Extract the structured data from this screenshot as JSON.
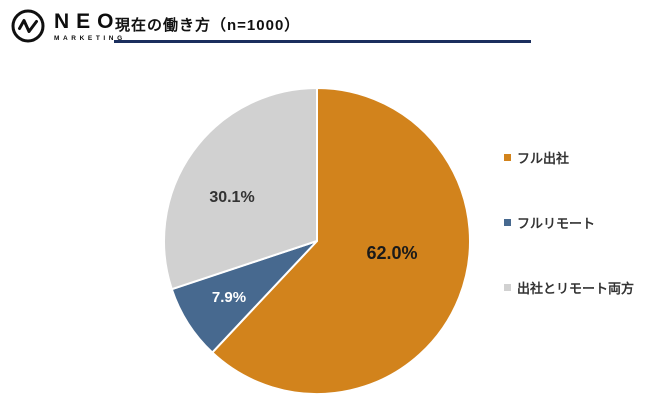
{
  "header": {
    "logo_text": "NEO",
    "logo_subtext": "MARKETING",
    "title": "現在の働き方（n=1000）"
  },
  "chart_data": {
    "type": "pie",
    "title": "現在の働き方（n=1000）",
    "sample_size_label": "n=1000",
    "direction": "clockwise",
    "start_angle_deg": 0,
    "legend_position": "right",
    "slices": [
      {
        "label": "フル出社",
        "value": 62.0,
        "display": "62.0%",
        "color": "#D2831C",
        "label_color": "#1a1a1a"
      },
      {
        "label": "フルリモート",
        "value": 7.9,
        "display": "7.9%",
        "color": "#47698F",
        "label_color": "#ffffff"
      },
      {
        "label": "出社とリモート両方",
        "value": 30.1,
        "display": "30.1%",
        "color": "#D1D1D1",
        "label_color": "#333333"
      }
    ]
  }
}
